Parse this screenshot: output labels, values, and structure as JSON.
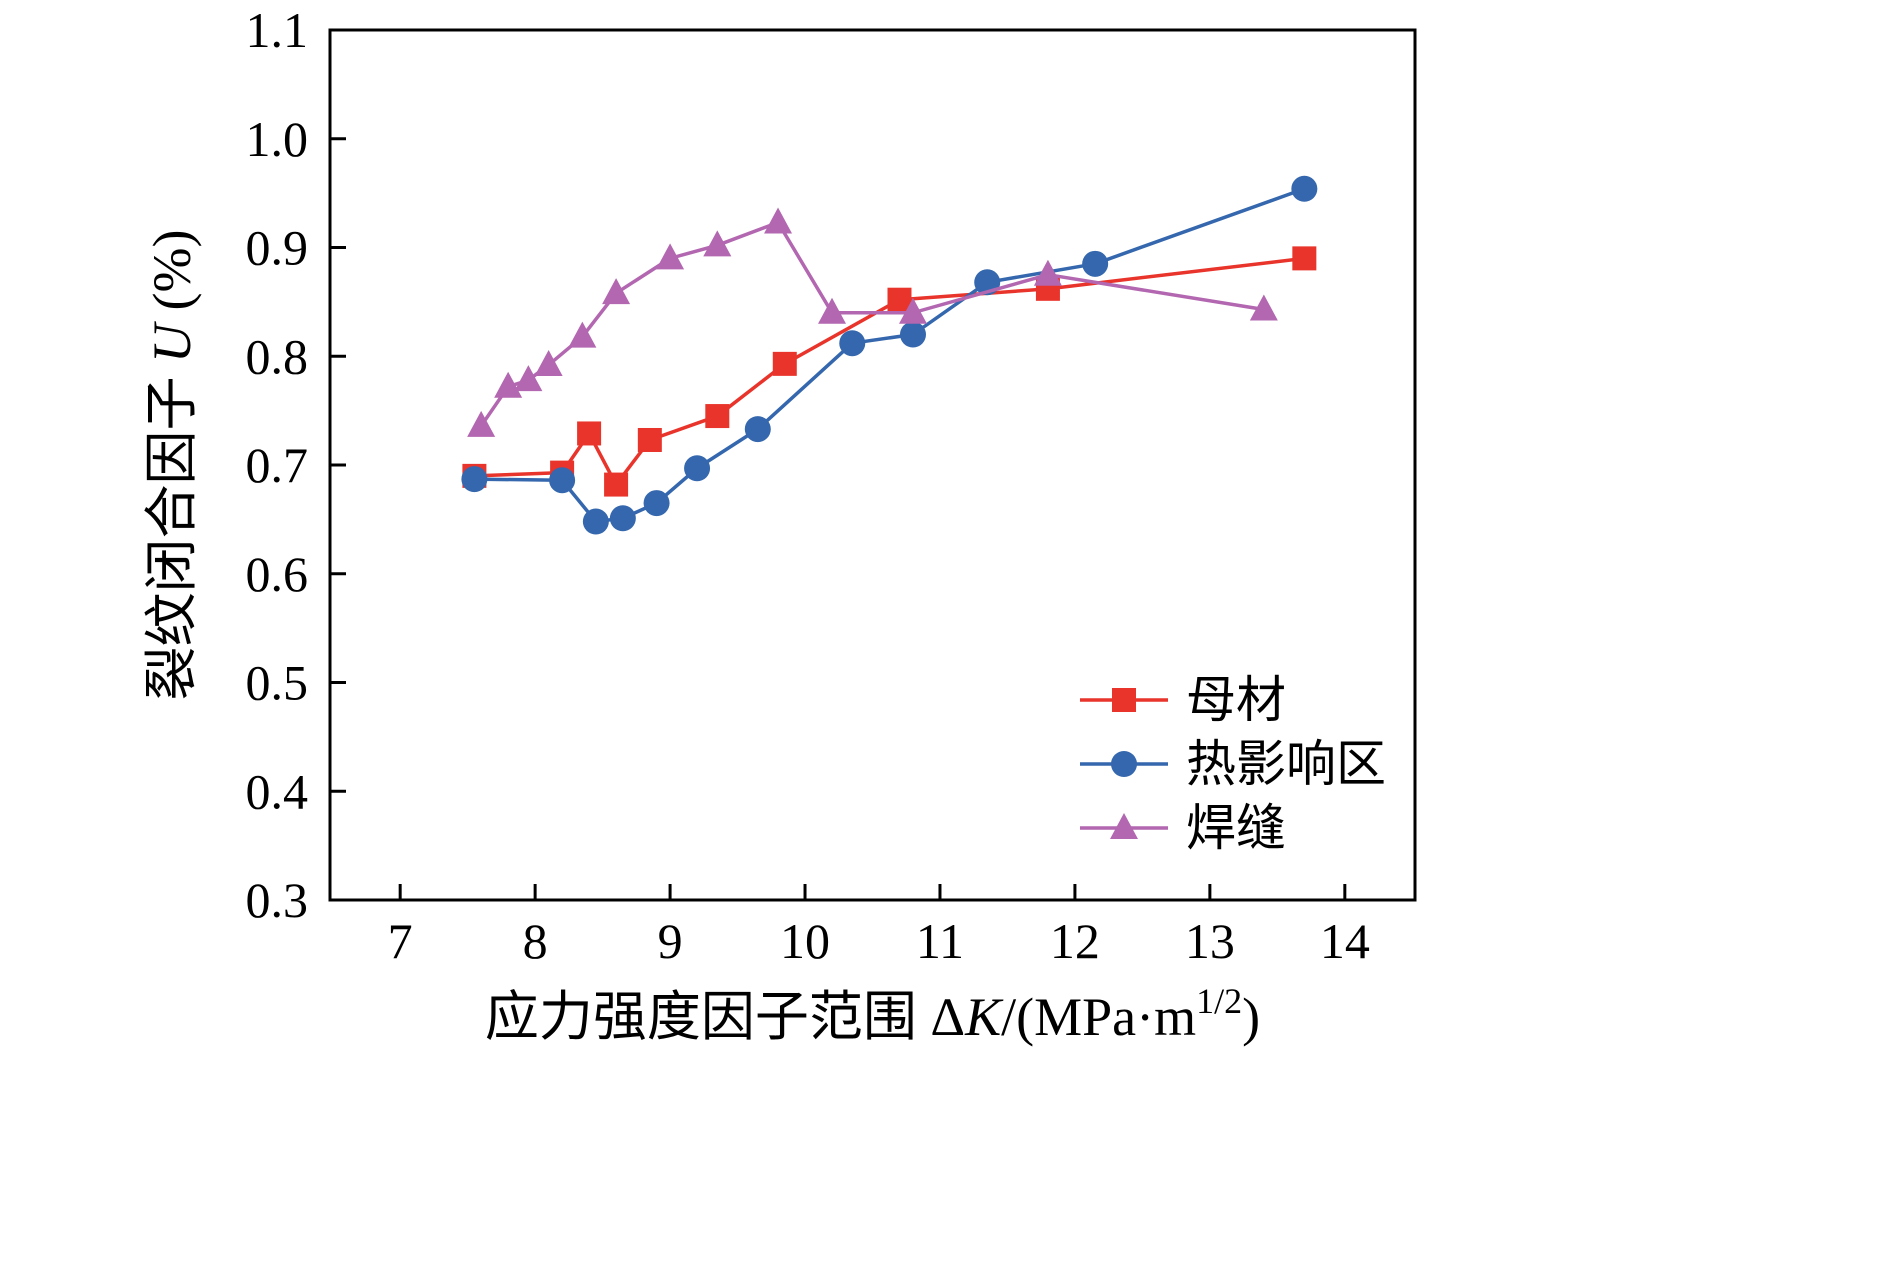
{
  "chart_data": {
    "type": "line",
    "title": "",
    "xlabel_parts": [
      {
        "t": "应力强度因子范围 ",
        "style": "normal"
      },
      {
        "t": "Δ",
        "style": "normal"
      },
      {
        "t": "K",
        "style": "italic"
      },
      {
        "t": "/(MPa·m",
        "style": "normal"
      },
      {
        "t": "1/2",
        "style": "sup"
      },
      {
        "t": ")",
        "style": "normal"
      }
    ],
    "ylabel_parts": [
      {
        "t": "裂纹闭合因子 ",
        "style": "normal"
      },
      {
        "t": "U",
        "style": "italic"
      },
      {
        "t": " (%)",
        "style": "normal"
      }
    ],
    "xlim": [
      6.48,
      14.52
    ],
    "ylim": [
      0.3,
      1.1
    ],
    "xticks": [
      7,
      8,
      9,
      10,
      11,
      12,
      13,
      14
    ],
    "yticks": [
      0.3,
      0.4,
      0.5,
      0.6,
      0.7,
      0.8,
      0.9,
      1.0,
      1.1
    ],
    "grid": false,
    "legend_position": "inside-lower-right",
    "series": [
      {
        "name": "母材",
        "marker": "square",
        "color": "#e8342b",
        "points": [
          [
            7.55,
            0.69
          ],
          [
            8.2,
            0.693
          ],
          [
            8.4,
            0.729
          ],
          [
            8.6,
            0.682
          ],
          [
            8.85,
            0.723
          ],
          [
            9.35,
            0.745
          ],
          [
            9.85,
            0.793
          ],
          [
            10.7,
            0.852
          ],
          [
            11.8,
            0.862
          ],
          [
            13.7,
            0.89
          ]
        ]
      },
      {
        "name": "热影响区",
        "marker": "circle",
        "color": "#3467ad",
        "points": [
          [
            7.55,
            0.687
          ],
          [
            8.2,
            0.686
          ],
          [
            8.45,
            0.648
          ],
          [
            8.65,
            0.651
          ],
          [
            8.9,
            0.665
          ],
          [
            9.2,
            0.697
          ],
          [
            9.65,
            0.733
          ],
          [
            10.35,
            0.812
          ],
          [
            10.8,
            0.82
          ],
          [
            11.35,
            0.868
          ],
          [
            12.15,
            0.885
          ],
          [
            13.7,
            0.954
          ]
        ]
      },
      {
        "name": "焊缝",
        "marker": "triangle",
        "color": "#b267b0",
        "points": [
          [
            7.6,
            0.736
          ],
          [
            7.8,
            0.772
          ],
          [
            7.95,
            0.778
          ],
          [
            8.1,
            0.792
          ],
          [
            8.35,
            0.818
          ],
          [
            8.6,
            0.858
          ],
          [
            9.0,
            0.89
          ],
          [
            9.35,
            0.902
          ],
          [
            9.8,
            0.923
          ],
          [
            10.2,
            0.84
          ],
          [
            10.8,
            0.84
          ],
          [
            11.8,
            0.875
          ],
          [
            13.4,
            0.843
          ]
        ]
      }
    ]
  }
}
